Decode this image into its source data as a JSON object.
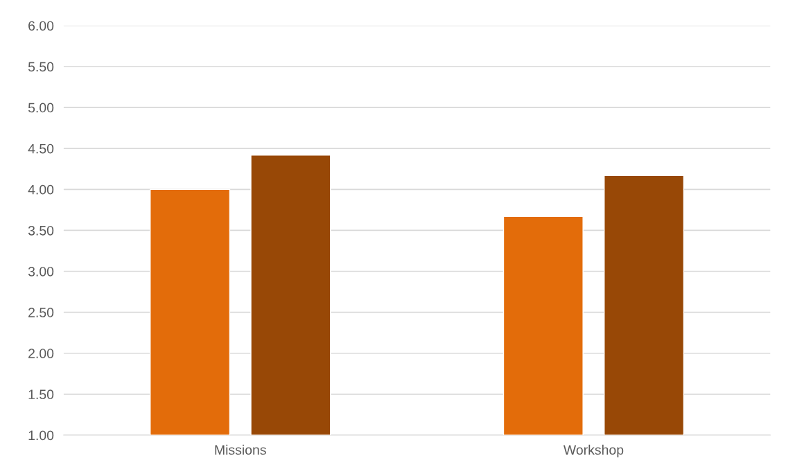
{
  "chart_data": {
    "type": "bar",
    "categories": [
      "Missions",
      "Workshop"
    ],
    "series": [
      {
        "color": "#e36c0a",
        "values": [
          4.0,
          3.67
        ]
      },
      {
        "color": "#984806",
        "values": [
          4.42,
          4.17
        ]
      }
    ],
    "ylim": [
      1.0,
      6.0
    ],
    "yticks": [
      {
        "value": 1,
        "label": "1.00"
      },
      {
        "value": 1.5,
        "label": "1.50"
      },
      {
        "value": 2,
        "label": "2.00"
      },
      {
        "value": 2.5,
        "label": "2.50"
      },
      {
        "value": 3,
        "label": "3.00"
      },
      {
        "value": 3.5,
        "label": "3.50"
      },
      {
        "value": 4,
        "label": "4.00"
      },
      {
        "value": 4.5,
        "label": "4.50"
      },
      {
        "value": 5,
        "label": "5.00"
      },
      {
        "value": 5.5,
        "label": "5.50"
      },
      {
        "value": 6,
        "label": "6.00"
      }
    ],
    "grid": "y"
  }
}
